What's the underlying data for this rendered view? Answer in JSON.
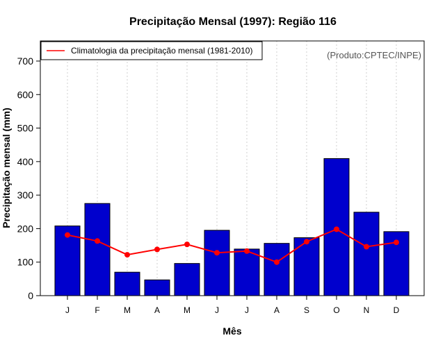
{
  "chart_data": {
    "type": "bar",
    "title": "Precipitação Mensal (1997): Região 116",
    "xlabel": "Mês",
    "ylabel": "Precipitação mensal (mm)",
    "categories": [
      "J",
      "F",
      "M",
      "A",
      "M",
      "J",
      "J",
      "A",
      "S",
      "O",
      "N",
      "D"
    ],
    "ylim": [
      0,
      760
    ],
    "yticks": [
      0,
      100,
      200,
      300,
      400,
      500,
      600,
      700
    ],
    "grid": "vertical-dotted",
    "series": [
      {
        "name": "Precipitação mensal 1997",
        "kind": "bar",
        "color": "#0000CD",
        "values": [
          208,
          275,
          70,
          47,
          96,
          195,
          139,
          156,
          173,
          409,
          249,
          191
        ]
      },
      {
        "name": "Climatologia da precipitação mensal (1981-2010)",
        "kind": "line",
        "color": "#FF0000",
        "values": [
          181,
          163,
          122,
          138,
          153,
          128,
          133,
          100,
          161,
          198,
          146,
          159
        ]
      }
    ],
    "legend": {
      "position": "top-left",
      "label": "Climatologia da precipitação mensal (1981-2010)"
    },
    "annotation": "(Produto:CPTEC/INPE)"
  }
}
